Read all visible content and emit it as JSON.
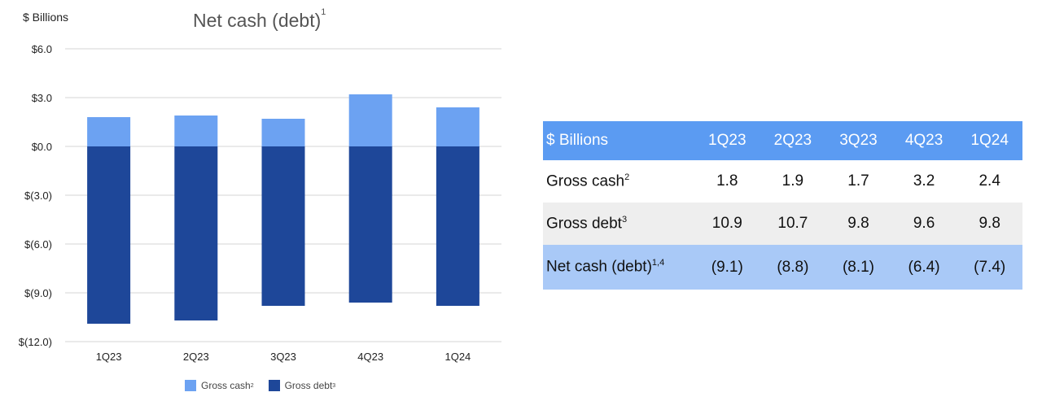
{
  "chart": {
    "unit_label": "$ Billions",
    "title": "Net cash (debt)",
    "title_sup": "1",
    "legend": [
      {
        "label": "Gross cash",
        "sup": "2",
        "color": "#6ca2f2"
      },
      {
        "label": "Gross debt",
        "sup": "3",
        "color": "#1e4799"
      }
    ]
  },
  "chart_data": {
    "type": "bar",
    "stacked": true,
    "title": "Net cash (debt)",
    "ylabel": "$ Billions",
    "categories": [
      "1Q23",
      "2Q23",
      "3Q23",
      "4Q23",
      "1Q24"
    ],
    "series": [
      {
        "name": "Gross cash",
        "values": [
          1.8,
          1.9,
          1.7,
          3.2,
          2.4
        ],
        "color": "#6ca2f2"
      },
      {
        "name": "Gross debt",
        "values": [
          -10.9,
          -10.7,
          -9.8,
          -9.6,
          -9.8
        ],
        "color": "#1e4799"
      }
    ],
    "ylim": [
      -12.0,
      6.0
    ],
    "yticks": [
      6.0,
      3.0,
      0.0,
      -3.0,
      -6.0,
      -9.0,
      -12.0
    ],
    "ytick_labels": [
      "$6.0",
      "$3.0",
      "$0.0",
      "$(3.0)",
      "$(6.0)",
      "$(9.0)",
      "$(12.0)"
    ],
    "grid": true,
    "legend_position": "bottom"
  },
  "table": {
    "header": {
      "label": "$ Billions",
      "columns": [
        "1Q23",
        "2Q23",
        "3Q23",
        "4Q23",
        "1Q24"
      ]
    },
    "rows": [
      {
        "label": "Gross cash",
        "sup": "2",
        "values": [
          "1.8",
          "1.9",
          "1.7",
          "3.2",
          "2.4"
        ]
      },
      {
        "label": "Gross debt",
        "sup": "3",
        "values": [
          "10.9",
          "10.7",
          "9.8",
          "9.6",
          "9.8"
        ]
      },
      {
        "label": "Net cash (debt)",
        "sup": "1,4",
        "values": [
          "(9.1)",
          "(8.8)",
          "(8.1)",
          "(6.4)",
          "(7.4)"
        ]
      }
    ]
  }
}
